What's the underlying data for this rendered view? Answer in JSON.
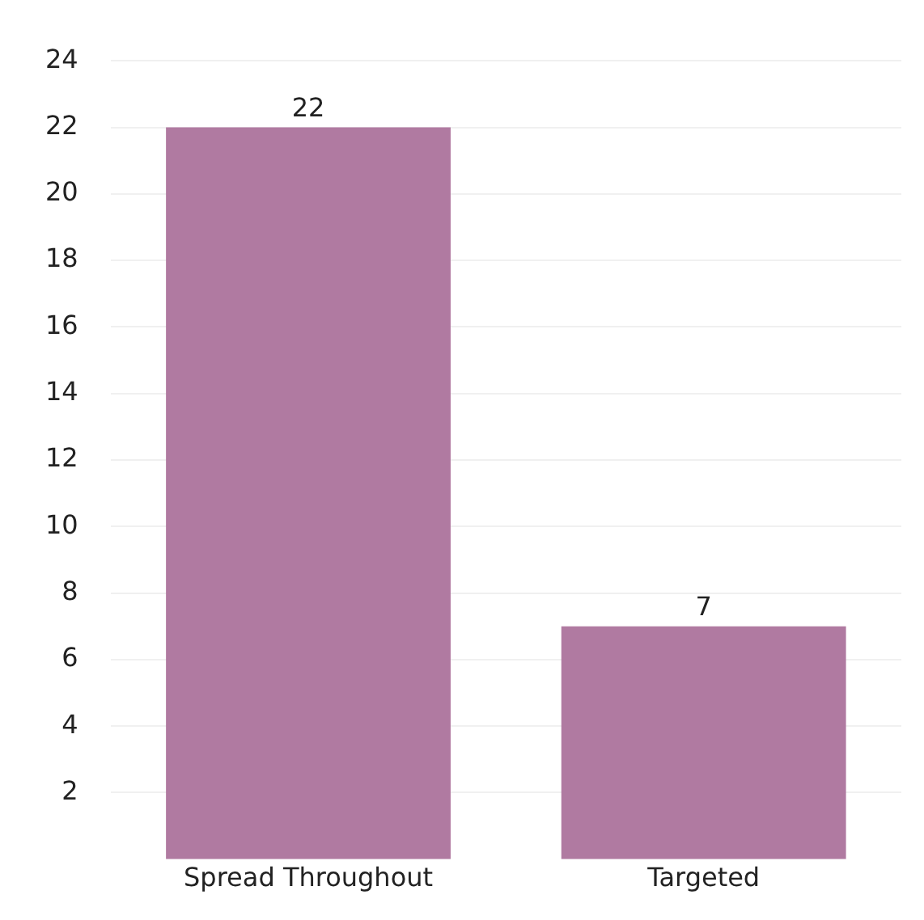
{
  "chart_data": {
    "type": "bar",
    "categories": [
      "Spread Throughout",
      "Targeted"
    ],
    "values": [
      22,
      7
    ],
    "color": "#b07aa1",
    "ylim": [
      0,
      24
    ],
    "yticks": [
      2,
      4,
      6,
      8,
      10,
      12,
      14,
      16,
      18,
      20,
      22,
      24
    ],
    "grid": "y",
    "data_labels": true,
    "legend": false
  }
}
